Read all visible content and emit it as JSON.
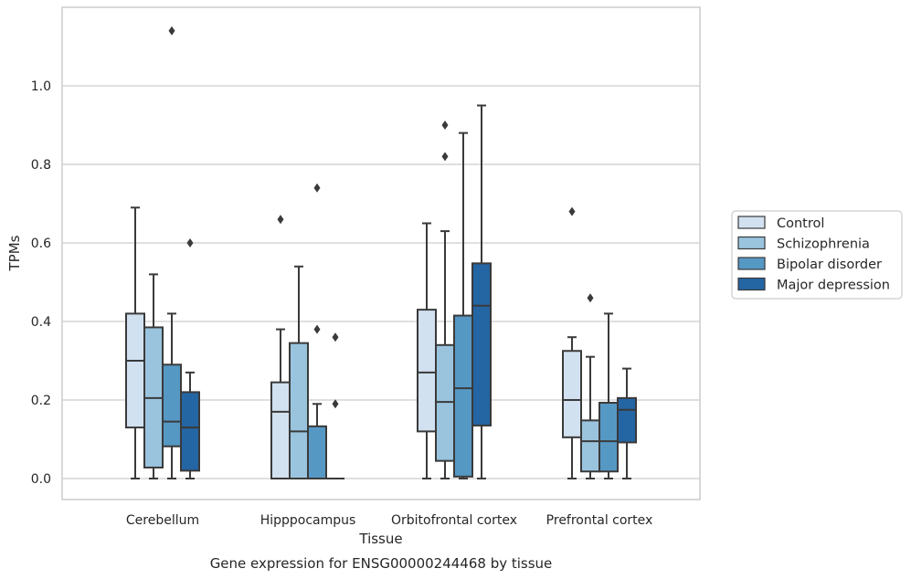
{
  "chart_data": {
    "type": "boxplot",
    "title": "Gene expression for ENSG00000244468 by tissue",
    "xlabel": "Tissue",
    "ylabel": "TPMs",
    "ylim": [
      -0.055,
      1.205
    ],
    "yticks": [
      0.0,
      0.2,
      0.4,
      0.6,
      0.8,
      1.0
    ],
    "ytick_labels": [
      "0.0",
      "0.2",
      "0.4",
      "0.6",
      "0.8",
      "1.0"
    ],
    "grid": "horizontal",
    "legend_placement": "right-outside",
    "categories": [
      "Cerebellum",
      "Hipppocampus",
      "Orbitofrontal cortex",
      "Prefrontal cortex"
    ],
    "series": [
      {
        "name": "Control",
        "color": "#d1e1f0",
        "boxes": [
          {
            "whislo": 0.0,
            "q1": 0.13,
            "med": 0.3,
            "q3": 0.42,
            "whishi": 0.69,
            "fliers": []
          },
          {
            "whislo": 0.0,
            "q1": 0.0,
            "med": 0.17,
            "q3": 0.245,
            "whishi": 0.38,
            "fliers": [
              0.66
            ]
          },
          {
            "whislo": 0.0,
            "q1": 0.12,
            "med": 0.27,
            "q3": 0.43,
            "whishi": 0.65,
            "fliers": []
          },
          {
            "whislo": 0.0,
            "q1": 0.105,
            "med": 0.2,
            "q3": 0.325,
            "whishi": 0.36,
            "fliers": [
              0.68
            ]
          }
        ]
      },
      {
        "name": "Schizophrenia",
        "color": "#9ac4de",
        "boxes": [
          {
            "whislo": 0.0,
            "q1": 0.028,
            "med": 0.205,
            "q3": 0.385,
            "whishi": 0.52,
            "fliers": []
          },
          {
            "whislo": 0.0,
            "q1": 0.0,
            "med": 0.12,
            "q3": 0.345,
            "whishi": 0.54,
            "fliers": []
          },
          {
            "whislo": 0.0,
            "q1": 0.045,
            "med": 0.195,
            "q3": 0.34,
            "whishi": 0.63,
            "fliers": [
              0.82,
              0.9
            ]
          },
          {
            "whislo": 0.0,
            "q1": 0.018,
            "med": 0.095,
            "q3": 0.148,
            "whishi": 0.31,
            "fliers": [
              0.46
            ]
          }
        ]
      },
      {
        "name": "Bipolar disorder",
        "color": "#5698c4",
        "boxes": [
          {
            "whislo": 0.0,
            "q1": 0.082,
            "med": 0.145,
            "q3": 0.29,
            "whishi": 0.42,
            "fliers": [
              1.14
            ]
          },
          {
            "whislo": 0.0,
            "q1": 0.0,
            "med": 0.0,
            "q3": 0.133,
            "whishi": 0.19,
            "fliers": [
              0.38,
              0.74
            ]
          },
          {
            "whislo": 0.0,
            "q1": 0.005,
            "med": 0.23,
            "q3": 0.415,
            "whishi": 0.88,
            "fliers": []
          },
          {
            "whislo": 0.0,
            "q1": 0.018,
            "med": 0.095,
            "q3": 0.193,
            "whishi": 0.42,
            "fliers": []
          }
        ]
      },
      {
        "name": "Major depression",
        "color": "#2465a3",
        "boxes": [
          {
            "whislo": 0.0,
            "q1": 0.02,
            "med": 0.13,
            "q3": 0.22,
            "whishi": 0.27,
            "fliers": [
              0.6
            ]
          },
          {
            "whislo": 0.0,
            "q1": 0.0,
            "med": 0.0,
            "q3": 0.0,
            "whishi": 0.0,
            "fliers": [
              0.19,
              0.36
            ]
          },
          {
            "whislo": 0.0,
            "q1": 0.135,
            "med": 0.44,
            "q3": 0.548,
            "whishi": 0.95,
            "fliers": []
          },
          {
            "whislo": 0.0,
            "q1": 0.092,
            "med": 0.175,
            "q3": 0.205,
            "whishi": 0.28,
            "fliers": []
          }
        ]
      }
    ]
  }
}
